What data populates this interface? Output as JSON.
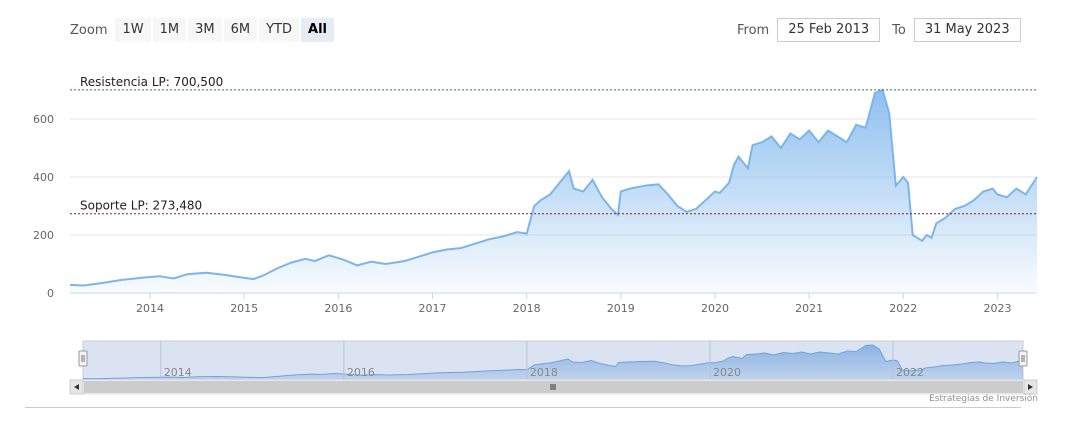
{
  "zoom": {
    "label": "Zoom",
    "buttons": [
      "1W",
      "1M",
      "3M",
      "6M",
      "YTD",
      "All"
    ],
    "active": "All"
  },
  "range": {
    "from_label": "From",
    "from_value": "25 Feb 2013",
    "to_label": "To",
    "to_value": "31 May 2023"
  },
  "chart_data": {
    "type": "area",
    "ylim": [
      0,
      700
    ],
    "yticks": [
      0,
      200,
      400,
      600
    ],
    "xlim": [
      2013.15,
      2023.42
    ],
    "xticks": [
      "2014",
      "2015",
      "2016",
      "2017",
      "2018",
      "2019",
      "2020",
      "2021",
      "2022",
      "2023"
    ],
    "annotations": [
      {
        "label": "Resistencia LP: 700,500",
        "value": 700.5,
        "color": "#2e7d32"
      },
      {
        "label": "Soporte LP: 273,480",
        "value": 273.48,
        "color": "#8b1a2b"
      }
    ],
    "x": [
      2013.15,
      2013.3,
      2013.5,
      2013.7,
      2013.9,
      2014.1,
      2014.25,
      2014.4,
      2014.6,
      2014.8,
      2015.0,
      2015.1,
      2015.2,
      2015.35,
      2015.5,
      2015.65,
      2015.75,
      2015.9,
      2016.05,
      2016.2,
      2016.35,
      2016.5,
      2016.7,
      2016.85,
      2017.0,
      2017.15,
      2017.3,
      2017.45,
      2017.6,
      2017.75,
      2017.9,
      2018.0,
      2018.08,
      2018.15,
      2018.25,
      2018.35,
      2018.45,
      2018.5,
      2018.6,
      2018.7,
      2018.8,
      2018.9,
      2018.97,
      2019.0,
      2019.1,
      2019.25,
      2019.4,
      2019.5,
      2019.6,
      2019.7,
      2019.8,
      2019.9,
      2020.0,
      2020.05,
      2020.15,
      2020.2,
      2020.25,
      2020.35,
      2020.4,
      2020.5,
      2020.6,
      2020.7,
      2020.8,
      2020.9,
      2021.0,
      2021.1,
      2021.2,
      2021.3,
      2021.4,
      2021.5,
      2021.6,
      2021.7,
      2021.78,
      2021.85,
      2021.92,
      2022.0,
      2022.05,
      2022.1,
      2022.2,
      2022.25,
      2022.3,
      2022.35,
      2022.45,
      2022.55,
      2022.65,
      2022.75,
      2022.85,
      2022.95,
      2023.0,
      2023.1,
      2023.2,
      2023.3,
      2023.42
    ],
    "values": [
      28,
      26,
      35,
      45,
      52,
      58,
      50,
      65,
      70,
      62,
      52,
      48,
      60,
      85,
      105,
      118,
      110,
      130,
      115,
      95,
      108,
      100,
      110,
      125,
      140,
      150,
      155,
      170,
      185,
      195,
      210,
      205,
      300,
      320,
      340,
      380,
      420,
      360,
      350,
      390,
      330,
      290,
      270,
      350,
      360,
      370,
      375,
      340,
      300,
      280,
      290,
      320,
      350,
      345,
      380,
      440,
      470,
      430,
      510,
      520,
      540,
      500,
      550,
      530,
      560,
      520,
      560,
      540,
      520,
      580,
      570,
      690,
      700,
      620,
      370,
      400,
      380,
      200,
      180,
      200,
      190,
      240,
      260,
      290,
      300,
      320,
      350,
      360,
      340,
      330,
      360,
      340,
      400
    ],
    "navigator": {
      "xticks": [
        "2014",
        "2016",
        "2018",
        "2020",
        "2022"
      ]
    }
  },
  "credit": "Estrategias de Inversión"
}
